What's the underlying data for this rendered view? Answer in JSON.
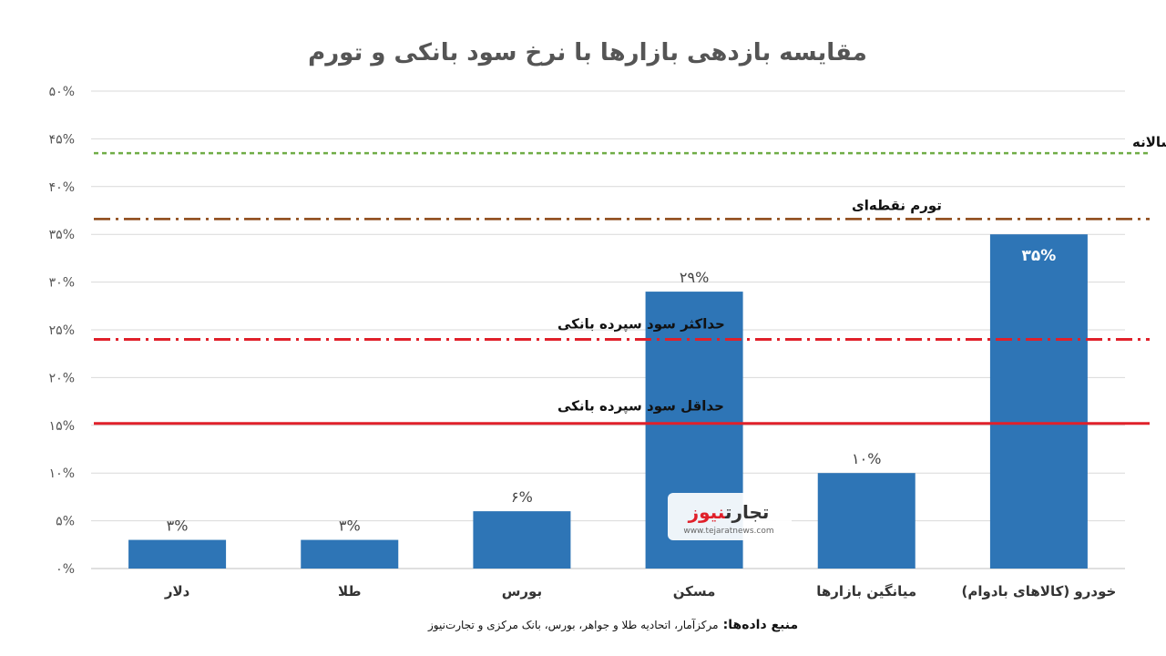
{
  "chart_data": {
    "type": "bar",
    "title": "مقایسه بازدهی بازارها با نرخ سود بانکی و تورم",
    "categories": [
      "دلار",
      "طلا",
      "بورس",
      "مسکن",
      "میانگین بازارها",
      "خودرو (کالاهای بادوام)"
    ],
    "values": [
      3,
      3,
      6,
      29,
      10,
      35
    ],
    "data_labels": [
      "۳%",
      "۳%",
      "۶%",
      "۲۹%",
      "۱۰%",
      "۳۵%"
    ],
    "ylim": [
      0,
      50
    ],
    "yticks": [
      0,
      5,
      10,
      15,
      20,
      25,
      30,
      35,
      40,
      45,
      50
    ],
    "ytick_labels": [
      "۰%",
      "۵%",
      "۱۰%",
      "۱۵%",
      "۲۰%",
      "۲۵%",
      "۳۰%",
      "۳۵%",
      "۴۰%",
      "۴۵%",
      "۵۰%"
    ],
    "grid": true,
    "bar_color": "#2e75b6",
    "reference_lines": [
      {
        "label": "میانگین تورم سالانه",
        "value": 43.5,
        "color": "#70ad47",
        "style": "dashed"
      },
      {
        "label": "تورم نقطه‌ای",
        "value": 36.6,
        "color": "#8b4513",
        "style": "dashdot"
      },
      {
        "label": "حداکثر سود سپرده بانکی",
        "value": 24,
        "color": "#e0202a",
        "style": "dashdot"
      },
      {
        "label": "حداقل سود سپرده بانکی",
        "value": 15.2,
        "color": "#e0202a",
        "style": "solid"
      }
    ]
  },
  "source": {
    "label": "منبع داده‌ها:",
    "text": "مرکزآمار، اتحادیه طلا و جواهر، بورس، بانک مرکزی و تجارت‌نیوز"
  },
  "watermark": {
    "name_part1": "تجارت",
    "name_part2": "نیوز",
    "url": "www.tejaratnews.com"
  }
}
